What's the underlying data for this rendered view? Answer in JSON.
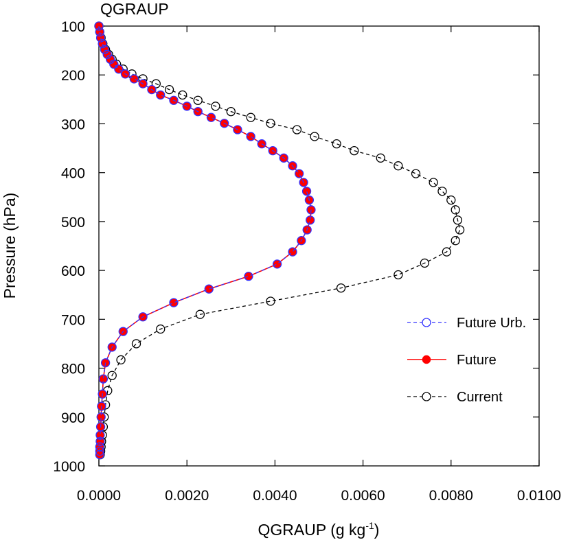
{
  "chart_data": {
    "type": "line",
    "title": "QGRAUP",
    "xlabel": "QGRAUP (g kg",
    "xlabel_sup": "-1",
    "xlabel_end": ")",
    "ylabel": "Pressure (hPa)",
    "xlim": [
      0.0,
      0.01
    ],
    "ylim": [
      1000,
      100
    ],
    "y_inverted": true,
    "x_ticks": [
      "0.0000",
      "0.0020",
      "0.0040",
      "0.0060",
      "0.0080",
      "0.0100"
    ],
    "y_ticks": [
      "100",
      "200",
      "300",
      "400",
      "500",
      "600",
      "700",
      "800",
      "900",
      "1000"
    ],
    "grid": false,
    "legend_position": "right",
    "series": [
      {
        "name": "Current",
        "color": "#000000",
        "line_style": "dashed",
        "marker": "open-circle",
        "points": [
          [
            0.0,
            100
          ],
          [
            2e-05,
            112
          ],
          [
            5e-05,
            124
          ],
          [
            9e-05,
            136
          ],
          [
            0.00015,
            148
          ],
          [
            0.00022,
            158
          ],
          [
            0.0003,
            168
          ],
          [
            0.0004,
            178
          ],
          [
            0.00055,
            188
          ],
          [
            0.00075,
            198
          ],
          [
            0.001,
            208
          ],
          [
            0.0013,
            218
          ],
          [
            0.0016,
            230
          ],
          [
            0.0019,
            241
          ],
          [
            0.00225,
            252
          ],
          [
            0.00265,
            264
          ],
          [
            0.003,
            275
          ],
          [
            0.00345,
            287
          ],
          [
            0.0039,
            299
          ],
          [
            0.0045,
            312
          ],
          [
            0.0049,
            326
          ],
          [
            0.0054,
            341
          ],
          [
            0.0058,
            355
          ],
          [
            0.0064,
            370
          ],
          [
            0.0068,
            386
          ],
          [
            0.0072,
            402
          ],
          [
            0.0076,
            420
          ],
          [
            0.0078,
            438
          ],
          [
            0.008,
            456
          ],
          [
            0.0081,
            476
          ],
          [
            0.00815,
            497
          ],
          [
            0.0082,
            517
          ],
          [
            0.0081,
            539
          ],
          [
            0.0079,
            562
          ],
          [
            0.0074,
            585
          ],
          [
            0.0068,
            609
          ],
          [
            0.0055,
            636
          ],
          [
            0.0039,
            663
          ],
          [
            0.0023,
            690
          ],
          [
            0.0014,
            720
          ],
          [
            0.00085,
            750
          ],
          [
            0.0005,
            783
          ],
          [
            0.0003,
            815
          ],
          [
            0.0002,
            846
          ],
          [
            0.00015,
            875
          ],
          [
            0.00012,
            900
          ],
          [
            0.0001,
            920
          ],
          [
            8e-05,
            937
          ],
          [
            6e-05,
            950
          ],
          [
            5e-05,
            961
          ],
          [
            4e-05,
            970
          ],
          [
            3e-05,
            977
          ]
        ]
      },
      {
        "name": "Future",
        "color": "#ff0000",
        "line_style": "solid",
        "marker": "filled-circle",
        "points": [
          [
            0.0,
            100
          ],
          [
            2e-05,
            112
          ],
          [
            4e-05,
            124
          ],
          [
            8e-05,
            136
          ],
          [
            0.00013,
            148
          ],
          [
            0.00019,
            158
          ],
          [
            0.00026,
            168
          ],
          [
            0.00034,
            178
          ],
          [
            0.00045,
            188
          ],
          [
            0.0006,
            198
          ],
          [
            0.0008,
            208
          ],
          [
            0.001,
            218
          ],
          [
            0.0012,
            230
          ],
          [
            0.0014,
            241
          ],
          [
            0.0017,
            252
          ],
          [
            0.002,
            264
          ],
          [
            0.00225,
            275
          ],
          [
            0.00255,
            287
          ],
          [
            0.00285,
            299
          ],
          [
            0.00315,
            312
          ],
          [
            0.00345,
            326
          ],
          [
            0.0037,
            341
          ],
          [
            0.00395,
            355
          ],
          [
            0.0042,
            370
          ],
          [
            0.0044,
            386
          ],
          [
            0.00455,
            402
          ],
          [
            0.00465,
            420
          ],
          [
            0.00472,
            438
          ],
          [
            0.00478,
            456
          ],
          [
            0.00482,
            476
          ],
          [
            0.0048,
            497
          ],
          [
            0.00473,
            517
          ],
          [
            0.0046,
            539
          ],
          [
            0.0044,
            562
          ],
          [
            0.00405,
            587
          ],
          [
            0.0034,
            612
          ],
          [
            0.0025,
            638
          ],
          [
            0.0017,
            666
          ],
          [
            0.001,
            695
          ],
          [
            0.00055,
            725
          ],
          [
            0.0003,
            757
          ],
          [
            0.00015,
            789
          ],
          [
            0.0001,
            822
          ],
          [
            8e-05,
            853
          ],
          [
            6e-05,
            878
          ],
          [
            5e-05,
            900
          ],
          [
            4e-05,
            920
          ],
          [
            3e-05,
            937
          ],
          [
            3e-05,
            950
          ],
          [
            2e-05,
            961
          ],
          [
            2e-05,
            970
          ],
          [
            2e-05,
            977
          ]
        ]
      },
      {
        "name": "Future Urb.",
        "color": "#3333ff",
        "line_style": "dashed",
        "marker": "open-circle",
        "points": [
          [
            0.0,
            100
          ],
          [
            2e-05,
            112
          ],
          [
            4e-05,
            124
          ],
          [
            8e-05,
            136
          ],
          [
            0.00013,
            148
          ],
          [
            0.00019,
            158
          ],
          [
            0.00026,
            168
          ],
          [
            0.00034,
            178
          ],
          [
            0.00045,
            188
          ],
          [
            0.0006,
            198
          ],
          [
            0.0008,
            208
          ],
          [
            0.001,
            218
          ],
          [
            0.0012,
            230
          ],
          [
            0.0014,
            241
          ],
          [
            0.0017,
            252
          ],
          [
            0.002,
            264
          ],
          [
            0.00225,
            275
          ],
          [
            0.00255,
            287
          ],
          [
            0.00285,
            299
          ],
          [
            0.00315,
            312
          ],
          [
            0.00345,
            326
          ],
          [
            0.0037,
            341
          ],
          [
            0.00395,
            355
          ],
          [
            0.0042,
            370
          ],
          [
            0.0044,
            386
          ],
          [
            0.00455,
            402
          ],
          [
            0.00465,
            420
          ],
          [
            0.00472,
            438
          ],
          [
            0.00478,
            456
          ],
          [
            0.00482,
            476
          ],
          [
            0.0048,
            497
          ],
          [
            0.00473,
            517
          ],
          [
            0.0046,
            539
          ],
          [
            0.0044,
            562
          ],
          [
            0.00405,
            587
          ],
          [
            0.0034,
            612
          ],
          [
            0.0025,
            638
          ],
          [
            0.0017,
            666
          ],
          [
            0.001,
            695
          ],
          [
            0.00055,
            725
          ],
          [
            0.0003,
            757
          ],
          [
            0.00015,
            789
          ],
          [
            0.0001,
            822
          ],
          [
            8e-05,
            853
          ],
          [
            6e-05,
            878
          ],
          [
            5e-05,
            900
          ],
          [
            4e-05,
            920
          ],
          [
            3e-05,
            937
          ],
          [
            3e-05,
            950
          ],
          [
            2e-05,
            961
          ],
          [
            2e-05,
            970
          ],
          [
            2e-05,
            977
          ]
        ]
      }
    ],
    "legend_order": [
      "Future Urb.",
      "Future",
      "Current"
    ]
  }
}
